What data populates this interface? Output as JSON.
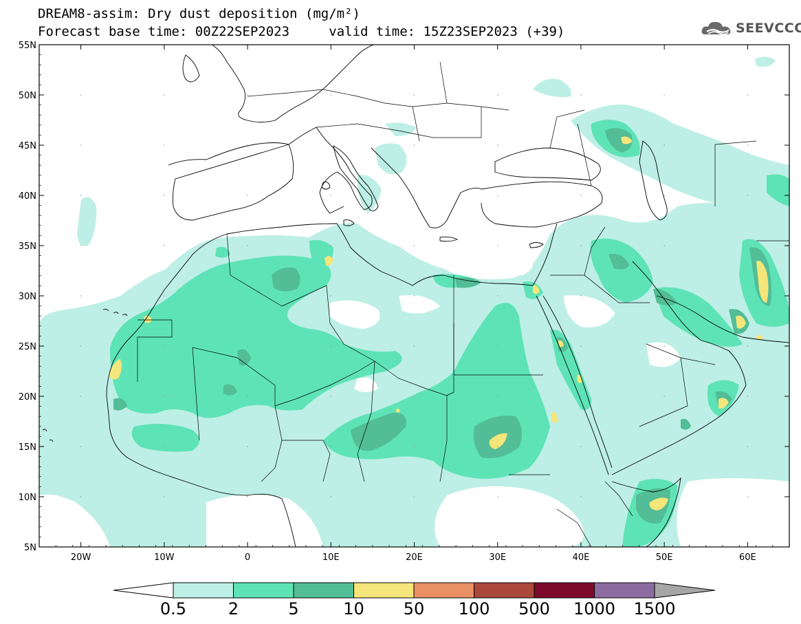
{
  "title": {
    "line1": "DREAM8-assim: Dry dust deposition (mg/m²)",
    "line2_base": "Forecast base time: 00Z22SEP2023",
    "line2_valid": "valid time: 15Z23SEP2023 (+39)"
  },
  "logo": {
    "text": "SEEVCCC",
    "icon": "cloud-logo-icon"
  },
  "axes": {
    "lat_labels": [
      "55N",
      "50N",
      "45N",
      "40N",
      "35N",
      "30N",
      "25N",
      "20N",
      "15N",
      "10N",
      "5N"
    ],
    "lon_labels": [
      "20W",
      "10W",
      "0",
      "10E",
      "20E",
      "30E",
      "40E",
      "50E",
      "60E"
    ],
    "lat_range": [
      5,
      55
    ],
    "lon_range": [
      -25,
      65
    ]
  },
  "colorbar": {
    "labels": [
      "0.5",
      "2",
      "5",
      "10",
      "50",
      "100",
      "500",
      "1000",
      "1500"
    ],
    "colors": [
      "#bdefe6",
      "#5ee3b7",
      "#52bd96",
      "#f4e67a",
      "#e99065",
      "#a9483b",
      "#7c0a2a",
      "#8c6ca0"
    ],
    "colors_hex_over": "#a6a6a6",
    "colors_hex_under": "#ffffff"
  }
}
